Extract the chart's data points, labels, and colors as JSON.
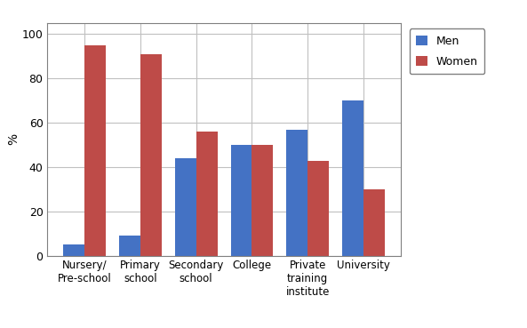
{
  "categories": [
    "Nursery/\nPre-school",
    "Primary\nschool",
    "Secondary\nschool",
    "College",
    "Private\ntraining\ninstitute",
    "University"
  ],
  "men_values": [
    5,
    9,
    44,
    50,
    57,
    70
  ],
  "women_values": [
    95,
    91,
    56,
    50,
    43,
    30
  ],
  "men_color": "#4472C4",
  "women_color": "#BE4B48",
  "ylabel": "%",
  "ylim": [
    0,
    105
  ],
  "yticks": [
    0,
    20,
    40,
    60,
    80,
    100
  ],
  "legend_labels": [
    "Men",
    "Women"
  ],
  "bar_width": 0.38,
  "background_color": "#FFFFFF",
  "grid_color": "#C0C0C0",
  "spine_color": "#808080"
}
